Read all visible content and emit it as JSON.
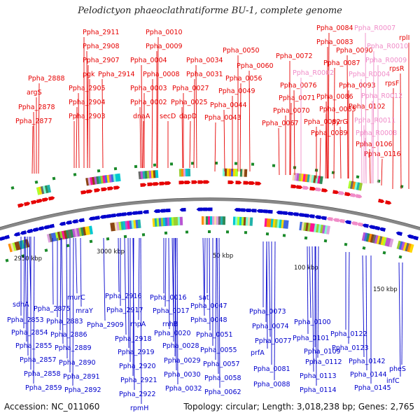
{
  "title": "Pelodictyon phaeoclathratiforme BU-1, complete genome",
  "footer": {
    "accession": "Accession: NC_011060",
    "summary": "Topology: circular; Length: 3,018,238 bp; Genes: 2,765"
  },
  "colors": {
    "forward_gene": "#e60000",
    "reverse_gene": "#0000cc",
    "rna_gene": "#f08cc8",
    "backbone": "#888888",
    "tick": "#1a8a2a"
  },
  "scale_labels": [
    "2950 kbp",
    "3000 kbp",
    "50 kbp",
    "100 kbp",
    "150 kbp"
  ],
  "top_labels": [
    {
      "text": "Ppha_2888",
      "kind": "fwd"
    },
    {
      "text": "argS",
      "kind": "fwd"
    },
    {
      "text": "Ppha_2878",
      "kind": "fwd"
    },
    {
      "text": "Ppha_2877",
      "kind": "fwd"
    },
    {
      "text": "Ppha_2911",
      "kind": "fwd"
    },
    {
      "text": "Ppha_2908",
      "kind": "fwd"
    },
    {
      "text": "Ppha_2907",
      "kind": "fwd"
    },
    {
      "text": "pgk",
      "kind": "fwd"
    },
    {
      "text": "Ppha_2905",
      "kind": "fwd"
    },
    {
      "text": "Ppha_2904",
      "kind": "fwd"
    },
    {
      "text": "Ppha_2903",
      "kind": "fwd"
    },
    {
      "text": "Ppha_2914",
      "kind": "fwd"
    },
    {
      "text": "Ppha_0010",
      "kind": "fwd"
    },
    {
      "text": "Ppha_0009",
      "kind": "fwd"
    },
    {
      "text": "Ppha_0004",
      "kind": "fwd"
    },
    {
      "text": "Ppha_0008",
      "kind": "fwd"
    },
    {
      "text": "Ppha_0003",
      "kind": "fwd"
    },
    {
      "text": "Ppha_0002",
      "kind": "fwd"
    },
    {
      "text": "dnaA",
      "kind": "fwd"
    },
    {
      "text": "secD",
      "kind": "fwd"
    },
    {
      "text": "Ppha_0034",
      "kind": "fwd"
    },
    {
      "text": "Ppha_0031",
      "kind": "fwd"
    },
    {
      "text": "Ppha_0027",
      "kind": "fwd"
    },
    {
      "text": "Ppha_0025",
      "kind": "fwd"
    },
    {
      "text": "dapD",
      "kind": "fwd"
    },
    {
      "text": "Ppha_0050",
      "kind": "fwd"
    },
    {
      "text": "Ppha_0060",
      "kind": "fwd"
    },
    {
      "text": "Ppha_0056",
      "kind": "fwd"
    },
    {
      "text": "Ppha_0049",
      "kind": "fwd"
    },
    {
      "text": "Ppha_0044",
      "kind": "fwd"
    },
    {
      "text": "Ppha_0043",
      "kind": "fwd"
    },
    {
      "text": "Ppha_0072",
      "kind": "fwd"
    },
    {
      "text": "Ppha_0076",
      "kind": "fwd"
    },
    {
      "text": "Ppha_0071",
      "kind": "fwd"
    },
    {
      "text": "Ppha_0070",
      "kind": "fwd"
    },
    {
      "text": "Ppha_0067",
      "kind": "fwd"
    },
    {
      "text": "Ppha_0084",
      "kind": "fwd"
    },
    {
      "text": "Ppha_0083",
      "kind": "fwd"
    },
    {
      "text": "Ppha_0090",
      "kind": "fwd"
    },
    {
      "text": "Ppha_0087",
      "kind": "fwd"
    },
    {
      "text": "Ppha_0093",
      "kind": "fwd"
    },
    {
      "text": "Ppha_0086",
      "kind": "fwd"
    },
    {
      "text": "Ppha_0085",
      "kind": "fwd"
    },
    {
      "text": "Ppha_0082",
      "kind": "fwd"
    },
    {
      "text": "pyrG",
      "kind": "fwd"
    },
    {
      "text": "Ppha_0089",
      "kind": "fwd"
    },
    {
      "text": "Ppha_0102",
      "kind": "fwd"
    },
    {
      "text": "Ppha_0106",
      "kind": "fwd"
    },
    {
      "text": "Ppha_0116",
      "kind": "fwd"
    },
    {
      "text": "rplI",
      "kind": "fwd"
    },
    {
      "text": "rpsR",
      "kind": "fwd"
    },
    {
      "text": "rpsF",
      "kind": "fwd"
    },
    {
      "text": "Ppha_R0002",
      "kind": "rna"
    },
    {
      "text": "Ppha_R0007",
      "kind": "rna"
    },
    {
      "text": "Ppha_R0010",
      "kind": "rna"
    },
    {
      "text": "Ppha_R0009",
      "kind": "rna"
    },
    {
      "text": "Ppha_R0004",
      "kind": "rna"
    },
    {
      "text": "Ppha_R0012",
      "kind": "rna"
    },
    {
      "text": "Ppha_R0011",
      "kind": "rna"
    },
    {
      "text": "Ppha_R0008",
      "kind": "rna"
    }
  ],
  "bottom_labels": [
    {
      "text": "sdhA"
    },
    {
      "text": "Ppha_2875"
    },
    {
      "text": "Ppha_2853"
    },
    {
      "text": "Ppha_2854"
    },
    {
      "text": "Ppha_2855"
    },
    {
      "text": "Ppha_2857"
    },
    {
      "text": "Ppha_2858"
    },
    {
      "text": "Ppha_2859"
    },
    {
      "text": "murC"
    },
    {
      "text": "mraY"
    },
    {
      "text": "Ppha_2883"
    },
    {
      "text": "Ppha_2886"
    },
    {
      "text": "Ppha_2889"
    },
    {
      "text": "Ppha_2890"
    },
    {
      "text": "Ppha_2891"
    },
    {
      "text": "Ppha_2892"
    },
    {
      "text": "Ppha_2909"
    },
    {
      "text": "Ppha_2916"
    },
    {
      "text": "Ppha_2917"
    },
    {
      "text": "rnpA"
    },
    {
      "text": "Ppha_2918"
    },
    {
      "text": "Ppha_2919"
    },
    {
      "text": "Ppha_2920"
    },
    {
      "text": "Ppha_2921"
    },
    {
      "text": "Ppha_2922"
    },
    {
      "text": "rpmH"
    },
    {
      "text": "Ppha_0016"
    },
    {
      "text": "Ppha_0017"
    },
    {
      "text": "rnhB"
    },
    {
      "text": "Ppha_0020"
    },
    {
      "text": "Ppha_0028"
    },
    {
      "text": "Ppha_0029"
    },
    {
      "text": "Ppha_0030"
    },
    {
      "text": "Ppha_0032"
    },
    {
      "text": "sat"
    },
    {
      "text": "Ppha_0047"
    },
    {
      "text": "Ppha_0048"
    },
    {
      "text": "Ppha_0051"
    },
    {
      "text": "Ppha_0055"
    },
    {
      "text": "Ppha_0057"
    },
    {
      "text": "Ppha_0058"
    },
    {
      "text": "Ppha_0062"
    },
    {
      "text": "Ppha_0073"
    },
    {
      "text": "Ppha_0074"
    },
    {
      "text": "Ppha_0077"
    },
    {
      "text": "prfA"
    },
    {
      "text": "Ppha_0081"
    },
    {
      "text": "Ppha_0088"
    },
    {
      "text": "Ppha_0100"
    },
    {
      "text": "Ppha_0101"
    },
    {
      "text": "Ppha_0109"
    },
    {
      "text": "Ppha_0112"
    },
    {
      "text": "Ppha_0113"
    },
    {
      "text": "Ppha_0114"
    },
    {
      "text": "Ppha_0122"
    },
    {
      "text": "Ppha_0123"
    },
    {
      "text": "Ppha_0142"
    },
    {
      "text": "Ppha_0144"
    },
    {
      "text": "Ppha_0145"
    },
    {
      "text": "pheS"
    },
    {
      "text": "infC"
    }
  ]
}
